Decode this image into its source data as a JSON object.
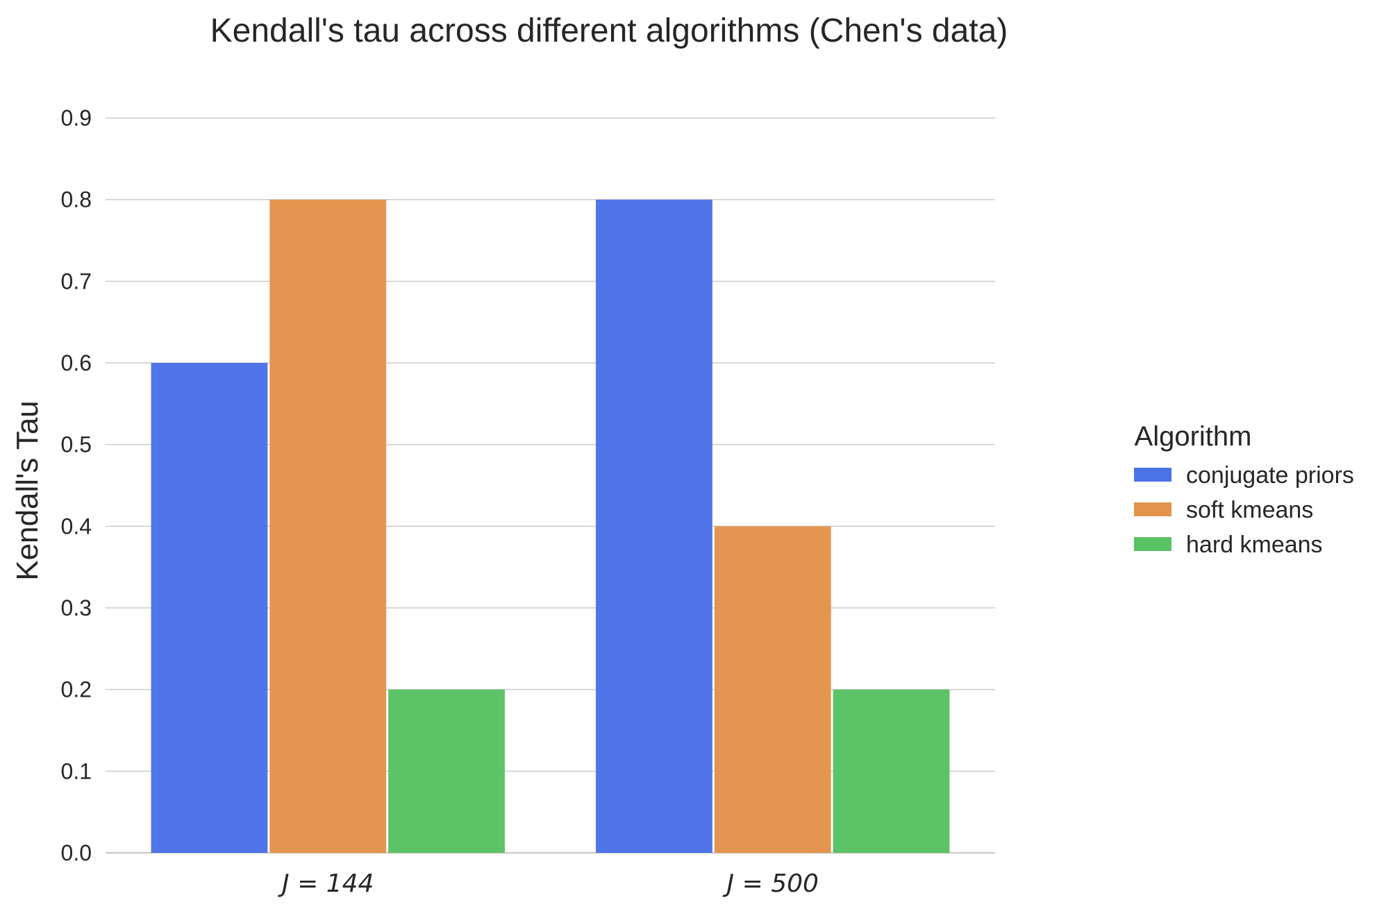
{
  "chart_data": {
    "type": "bar",
    "title": "Kendall's tau across different algorithms (Chen's data)",
    "xlabel": "",
    "ylabel": "Kendall's Tau",
    "categories": [
      "J = 144",
      "J = 500"
    ],
    "series": [
      {
        "name": "conjugate priors",
        "color": "#4C72E8",
        "values": [
          0.6,
          0.8
        ]
      },
      {
        "name": "soft kmeans",
        "color": "#E3934B",
        "values": [
          0.8,
          0.4
        ]
      },
      {
        "name": "hard kmeans",
        "color": "#59C263",
        "values": [
          0.2,
          0.2
        ]
      }
    ],
    "ylim": [
      0,
      0.9
    ],
    "yticks": [
      "0.0",
      "0.1",
      "0.2",
      "0.3",
      "0.4",
      "0.5",
      "0.6",
      "0.7",
      "0.8",
      "0.9"
    ],
    "grid": true,
    "legend": {
      "title": "Algorithm",
      "placement": "right"
    }
  }
}
